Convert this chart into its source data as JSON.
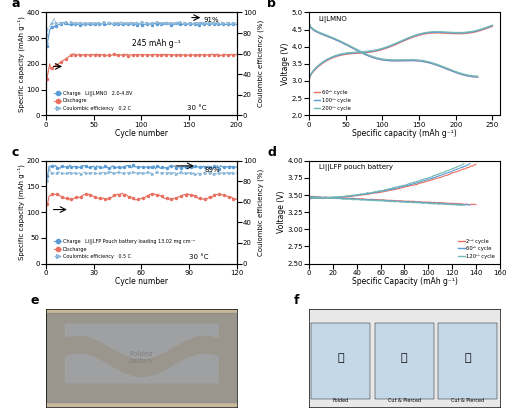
{
  "panel_a": {
    "title": "a",
    "xlabel": "Cycle number",
    "ylabel": "Specific capacity (mAh g⁻¹)",
    "ylabel2": "Coulombic efficiency (%)",
    "xlim": [
      0,
      200
    ],
    "ylim_left": [
      0,
      400
    ],
    "ylim_right": [
      0,
      100
    ],
    "annotation": "245 mAh g⁻¹",
    "annotation2": "91%",
    "annotation3": "30 °C",
    "legend": [
      "Charge   Li||LMNO   2.0-4.8V",
      "Dischagre",
      "Coulombic efficiency   0.2 C"
    ],
    "charge_color": "#5b9bd5",
    "discharge_color": "#e87060",
    "ce_color": "#8db8d8"
  },
  "panel_b": {
    "title": "b",
    "label": "Li|LMNO",
    "xlabel": "Specific capacity (mAh g⁻¹)",
    "ylabel": "Voltage (V)",
    "xlim": [
      0,
      260
    ],
    "ylim": [
      2.0,
      5.0
    ],
    "legend": [
      "60ᵗʰ cycle",
      "100ᵗʰ cycle",
      "200ᵗʰ cycle"
    ],
    "colors": [
      "#e87060",
      "#5b9bd5",
      "#70b8b0"
    ]
  },
  "panel_c": {
    "title": "c",
    "xlabel": "Cycle number",
    "ylabel": "Specific capacity (mAh g⁻¹)",
    "ylabel2": "Coulombic efficiency (%)",
    "xlim": [
      0,
      120
    ],
    "ylim_left": [
      0,
      200
    ],
    "ylim_right": [
      0,
      100
    ],
    "annotation": "89%",
    "annotation2": "30 °C",
    "legend": [
      "Charge   Li||LFP Pouch battery loading 13.02 mg cm⁻²",
      "Discharge",
      "Coulombic efficiency   0.5 C"
    ],
    "charge_color": "#5b9bd5",
    "discharge_color": "#e87060",
    "ce_color": "#8db8d8"
  },
  "panel_d": {
    "title": "d",
    "label": "Li||LFP pouch battery",
    "xlabel": "Specific Capacity (mAh g⁻¹)",
    "ylabel": "Voltage (V)",
    "xlim": [
      0,
      160
    ],
    "ylim": [
      2.5,
      4.0
    ],
    "legend": [
      "2ⁿᵈ cycle",
      "60ᵗʰ cycle",
      "120ᵗʰ cycle"
    ],
    "colors": [
      "#e87060",
      "#5b9bd5",
      "#70b8b0"
    ]
  },
  "panel_e": {
    "title": "e",
    "bg_color": "#c8b89a"
  },
  "panel_f": {
    "title": "f",
    "labels": [
      "Folded",
      "Cut & Pierced",
      "Cut & Pierced"
    ]
  }
}
